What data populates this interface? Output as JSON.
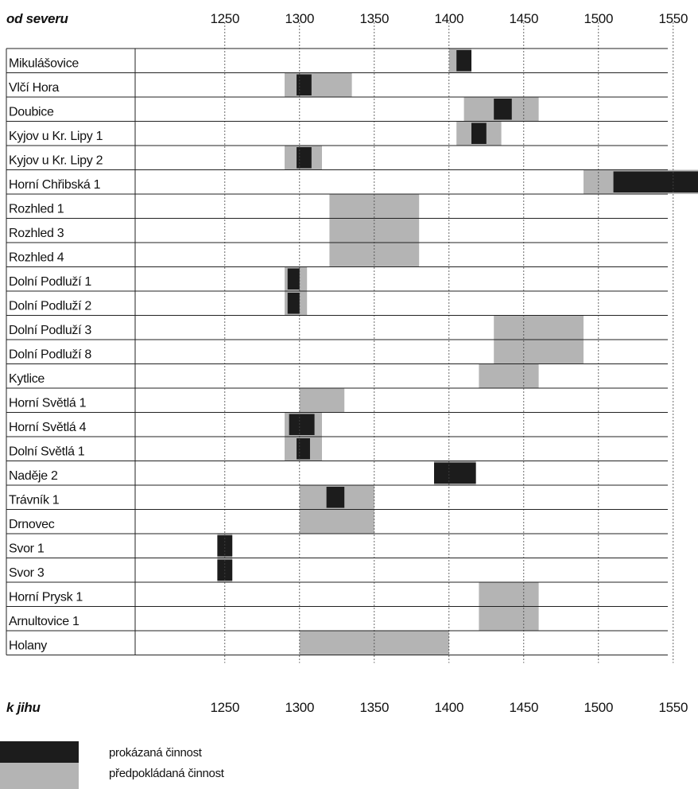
{
  "top_axis_title": "od severu",
  "bottom_axis_title": "k jihu",
  "colors": {
    "proven": "#1c1c1c",
    "presumed": "#b4b4b4",
    "grid": "#444444"
  },
  "chart_data": {
    "type": "gantt",
    "xlim": [
      1190,
      1590
    ],
    "ticks": [
      "1250",
      "1300",
      "1350",
      "1400",
      "1450",
      "1500",
      "1550"
    ],
    "tick_values": [
      1250,
      1300,
      1350,
      1400,
      1450,
      1500,
      1550
    ],
    "rows": [
      {
        "label": "Mikulášovice",
        "presumed": [
          [
            1400,
            1415
          ]
        ],
        "proven": [
          [
            1405,
            1415
          ]
        ]
      },
      {
        "label": "Vlčí Hora",
        "presumed": [
          [
            1290,
            1335
          ]
        ],
        "proven": [
          [
            1298,
            1308
          ]
        ]
      },
      {
        "label": "Doubice",
        "presumed": [
          [
            1410,
            1460
          ]
        ],
        "proven": [
          [
            1430,
            1442
          ]
        ]
      },
      {
        "label": "Kyjov u Kr. Lipy 1",
        "presumed": [
          [
            1405,
            1435
          ]
        ],
        "proven": [
          [
            1415,
            1425
          ]
        ]
      },
      {
        "label": "Kyjov u Kr. Lipy 2",
        "presumed": [
          [
            1290,
            1315
          ]
        ],
        "proven": [
          [
            1298,
            1308
          ]
        ]
      },
      {
        "label": "Horní Chřibská 1",
        "presumed": [
          [
            1490,
            1570
          ]
        ],
        "proven": [
          [
            1510,
            1570
          ]
        ],
        "arrow": true
      },
      {
        "label": "Rozhled 1",
        "presumed": [
          [
            1320,
            1380
          ]
        ],
        "proven": []
      },
      {
        "label": "Rozhled 3",
        "presumed": [
          [
            1320,
            1380
          ]
        ],
        "proven": []
      },
      {
        "label": "Rozhled 4",
        "presumed": [
          [
            1320,
            1380
          ]
        ],
        "proven": []
      },
      {
        "label": "Dolní Podluží 1",
        "presumed": [
          [
            1290,
            1305
          ]
        ],
        "proven": [
          [
            1292,
            1300
          ]
        ]
      },
      {
        "label": "Dolní Podluží 2",
        "presumed": [
          [
            1290,
            1305
          ]
        ],
        "proven": [
          [
            1292,
            1300
          ]
        ]
      },
      {
        "label": "Dolní Podluží 3",
        "presumed": [
          [
            1430,
            1490
          ]
        ],
        "proven": []
      },
      {
        "label": "Dolní Podluží 8",
        "presumed": [
          [
            1430,
            1490
          ]
        ],
        "proven": []
      },
      {
        "label": "Kytlice",
        "presumed": [
          [
            1420,
            1460
          ]
        ],
        "proven": []
      },
      {
        "label": "Horní Světlá 1",
        "presumed": [
          [
            1300,
            1330
          ]
        ],
        "proven": []
      },
      {
        "label": "Horní Světlá 4",
        "presumed": [
          [
            1290,
            1315
          ]
        ],
        "proven": [
          [
            1293,
            1310
          ]
        ]
      },
      {
        "label": "Dolní Světlá 1",
        "presumed": [
          [
            1290,
            1315
          ]
        ],
        "proven": [
          [
            1298,
            1307
          ]
        ]
      },
      {
        "label": "Naděje 2",
        "presumed": [
          [
            1390,
            1418
          ]
        ],
        "proven": [
          [
            1390,
            1418
          ]
        ]
      },
      {
        "label": "Trávník 1",
        "presumed": [
          [
            1300,
            1350
          ]
        ],
        "proven": [
          [
            1318,
            1330
          ]
        ]
      },
      {
        "label": "Drnovec",
        "presumed": [
          [
            1300,
            1350
          ]
        ],
        "proven": []
      },
      {
        "label": "Svor 1",
        "presumed": [
          [
            1245,
            1255
          ]
        ],
        "proven": [
          [
            1245,
            1255
          ]
        ]
      },
      {
        "label": "Svor 3",
        "presumed": [
          [
            1245,
            1255
          ]
        ],
        "proven": [
          [
            1245,
            1255
          ]
        ]
      },
      {
        "label": "Horní Prysk 1",
        "presumed": [
          [
            1420,
            1460
          ]
        ],
        "proven": []
      },
      {
        "label": "Arnultovice 1",
        "presumed": [
          [
            1420,
            1460
          ]
        ],
        "proven": []
      },
      {
        "label": "Holany",
        "presumed": [
          [
            1300,
            1400
          ]
        ],
        "proven": []
      }
    ]
  },
  "legend": {
    "proven_label": "prokázaná činnost",
    "presumed_label": "předpokládaná činnost"
  }
}
